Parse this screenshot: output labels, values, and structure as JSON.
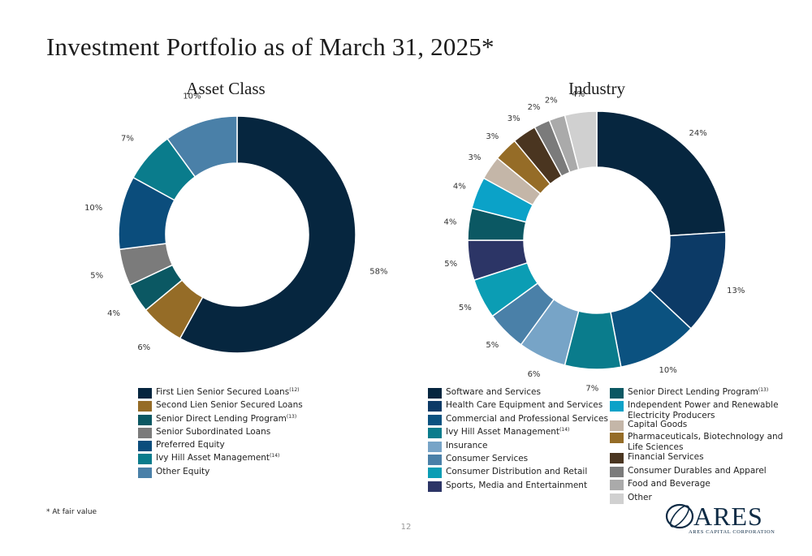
{
  "page": {
    "title": "Investment Portfolio as of March 31, 2025*",
    "footnote": "* At fair value",
    "page_number": "12",
    "logo": {
      "word": "ARES",
      "subtitle": "ARES CAPITAL CORPORATION"
    }
  },
  "chart_data": [
    {
      "type": "pie",
      "title": "Asset Class",
      "donut": true,
      "categories": [
        "First Lien Senior Secured Loans",
        "Second Lien Senior Secured Loans",
        "Senior Direct Lending Program",
        "Senior Subordinated Loans",
        "Preferred Equity",
        "Ivy Hill Asset Management",
        "Other Equity"
      ],
      "footnote_marks": [
        "(12)",
        "",
        "(13)",
        "",
        "",
        "(14)",
        ""
      ],
      "values": [
        58,
        6,
        4,
        5,
        10,
        7,
        10
      ],
      "data_labels": [
        "58%",
        "6%",
        "4%",
        "5%",
        "10%",
        "7%",
        "10%"
      ],
      "colors": [
        "#06263f",
        "#956c27",
        "#0b5863",
        "#7b7b7b",
        "#0b4d7c",
        "#0a7c8c",
        "#4a80a8"
      ],
      "legend_position": "bottom"
    },
    {
      "type": "pie",
      "title": "Industry",
      "donut": true,
      "categories": [
        "Software and Services",
        "Health Care Equipment and Services",
        "Commercial and Professional Services",
        "Ivy Hill Asset Management",
        "Insurance",
        "Consumer Services",
        "Consumer Distribution and Retail",
        "Sports, Media and Entertainment",
        "Senior Direct Lending Program",
        "Independent Power and Renewable Electricity Producers",
        "Capital Goods",
        "Pharmaceuticals, Biotechnology and Life Sciences",
        "Financial Services",
        "Consumer Durables and Apparel",
        "Food and Beverage",
        "Other"
      ],
      "footnote_marks": [
        "",
        "",
        "",
        "(14)",
        "",
        "",
        "",
        "",
        "(13)",
        "",
        "",
        "",
        "",
        "",
        "",
        ""
      ],
      "values": [
        24,
        13,
        10,
        7,
        6,
        5,
        5,
        5,
        4,
        4,
        3,
        3,
        3,
        2,
        2,
        4
      ],
      "data_labels": [
        "24%",
        "13%",
        "10%",
        "7%",
        "6%",
        "5%",
        "5%",
        "5%",
        "4%",
        "4%",
        "3%",
        "3%",
        "3%",
        "2%",
        "2%",
        "4%"
      ],
      "colors": [
        "#06263f",
        "#0c3a66",
        "#0b5280",
        "#0a7c8c",
        "#77a4c7",
        "#4a80a8",
        "#0b9db4",
        "#2c3566",
        "#0b5863",
        "#0ba2c8",
        "#c4b6a8",
        "#956c27",
        "#4a3520",
        "#7b7b7b",
        "#aaaaaa",
        "#d0d0d0"
      ],
      "legend_position": "bottom"
    }
  ]
}
